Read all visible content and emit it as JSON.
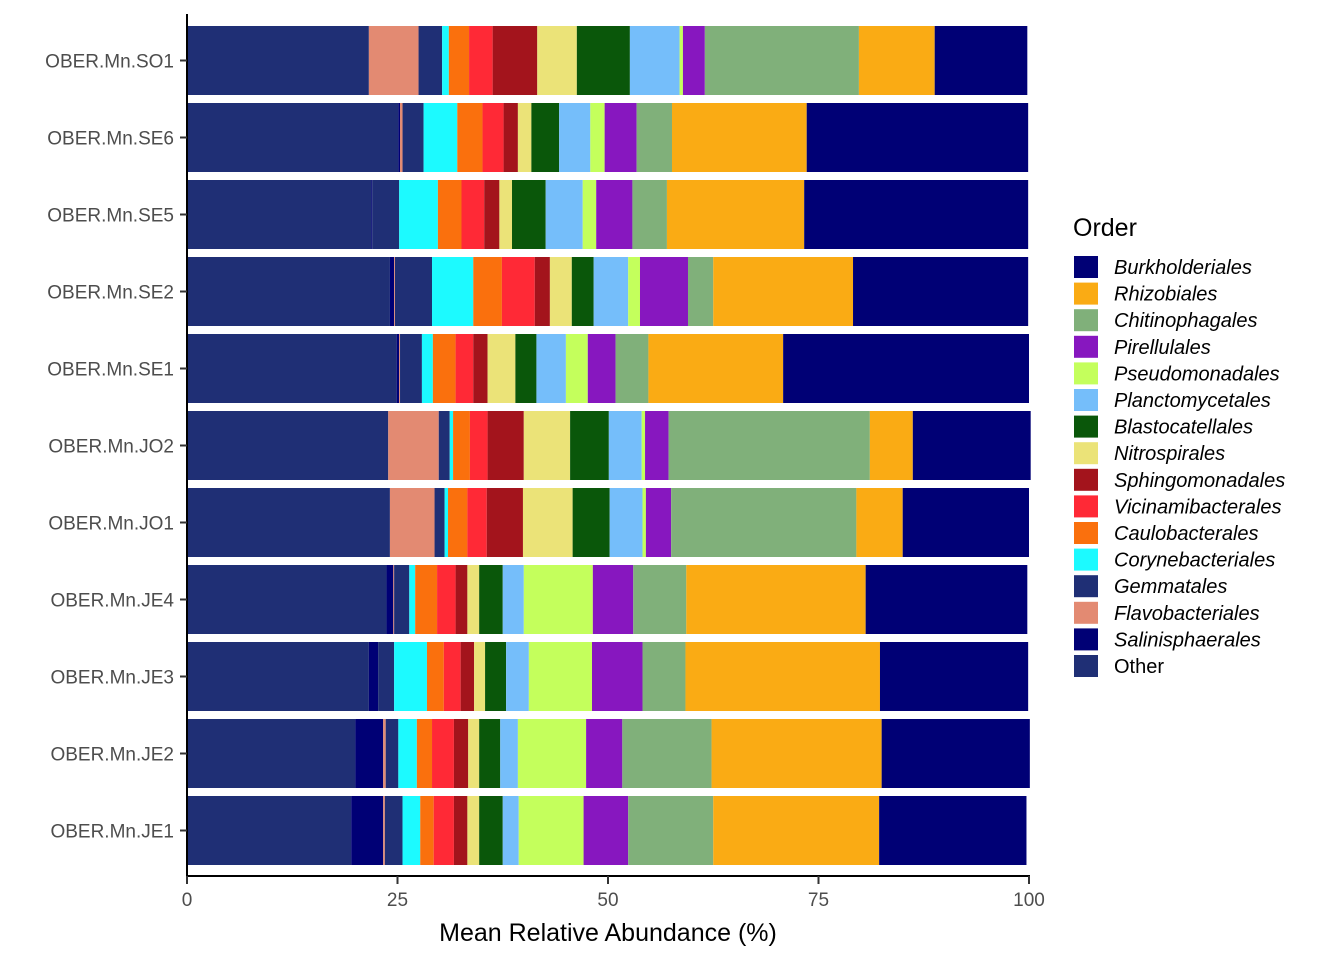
{
  "chart_data": {
    "type": "bar",
    "orientation": "horizontal",
    "stacked": true,
    "xlabel": "Mean Relative Abundance (%)",
    "ylabel": "",
    "xlim": [
      0,
      100
    ],
    "xticks": [
      0,
      25,
      50,
      75,
      100
    ],
    "categories": [
      "OBER.Mn.SO1",
      "OBER.Mn.SE6",
      "OBER.Mn.SE5",
      "OBER.Mn.SE2",
      "OBER.Mn.SE1",
      "OBER.Mn.JO2",
      "OBER.Mn.JO1",
      "OBER.Mn.JE4",
      "OBER.Mn.JE3",
      "OBER.Mn.JE2",
      "OBER.Mn.JE1"
    ],
    "legend_title": "Order",
    "legend_position": "right",
    "grid": false,
    "series": [
      {
        "name": "Other",
        "color": "#1F2F75",
        "italic": false,
        "values": [
          21.6,
          25.1,
          21.9,
          24.1,
          24.9,
          23.9,
          24.1,
          23.7,
          21.6,
          20.0,
          19.5
        ]
      },
      {
        "name": "Salinisphaerales",
        "color": "#000075",
        "italic": true,
        "values": [
          0.0,
          0.2,
          0.1,
          0.5,
          0.3,
          0.0,
          0.0,
          0.8,
          1.1,
          3.3,
          3.8
        ]
      },
      {
        "name": "Flavobacteriales",
        "color": "#E38A72",
        "italic": true,
        "values": [
          5.9,
          0.3,
          0.0,
          0.1,
          0.1,
          6.0,
          5.3,
          0.1,
          0.0,
          0.3,
          0.2
        ]
      },
      {
        "name": "Gemmatales",
        "color": "#1F2F75",
        "italic": true,
        "values": [
          2.8,
          2.5,
          3.2,
          4.4,
          2.6,
          1.3,
          1.2,
          1.8,
          1.9,
          1.5,
          2.1
        ]
      },
      {
        "name": "Corynebacteriales",
        "color": "#1CFAFF",
        "italic": true,
        "values": [
          0.8,
          4.0,
          4.6,
          4.9,
          1.3,
          0.4,
          0.4,
          0.7,
          3.9,
          2.2,
          2.1
        ]
      },
      {
        "name": "Caulobacterales",
        "color": "#FA700D",
        "italic": true,
        "values": [
          2.4,
          3.0,
          2.8,
          3.4,
          2.7,
          2.0,
          2.3,
          2.6,
          2.0,
          1.8,
          1.6
        ]
      },
      {
        "name": "Vicinamibacterales",
        "color": "#FF2936",
        "italic": true,
        "values": [
          2.8,
          2.5,
          2.7,
          3.9,
          2.1,
          2.1,
          2.3,
          2.2,
          2.0,
          2.6,
          2.4
        ]
      },
      {
        "name": "Sphingomonadales",
        "color": "#A3141C",
        "italic": true,
        "values": [
          5.3,
          1.7,
          1.8,
          1.8,
          1.7,
          4.3,
          4.3,
          1.4,
          1.6,
          1.7,
          1.6
        ]
      },
      {
        "name": "Nitrospirales",
        "color": "#EBE378",
        "italic": true,
        "values": [
          4.7,
          1.6,
          1.5,
          2.6,
          3.3,
          5.5,
          5.9,
          1.4,
          1.3,
          1.3,
          1.4
        ]
      },
      {
        "name": "Blastocatellales",
        "color": "#0A570A",
        "italic": true,
        "values": [
          6.3,
          3.3,
          4.0,
          2.6,
          2.5,
          4.6,
          4.4,
          2.8,
          2.5,
          2.5,
          2.8
        ]
      },
      {
        "name": "Planctomycetales",
        "color": "#75BEFA",
        "italic": true,
        "values": [
          5.9,
          3.7,
          4.4,
          4.1,
          3.5,
          3.9,
          3.9,
          2.5,
          2.7,
          2.1,
          1.9
        ]
      },
      {
        "name": "Pseudomonadales",
        "color": "#C4FF5C",
        "italic": true,
        "values": [
          0.4,
          1.7,
          1.6,
          1.4,
          2.6,
          0.4,
          0.4,
          8.2,
          7.5,
          8.1,
          7.7
        ]
      },
      {
        "name": "Pirellulales",
        "color": "#8717BF",
        "italic": true,
        "values": [
          2.6,
          3.8,
          4.3,
          5.7,
          3.3,
          2.8,
          3.0,
          4.8,
          6.0,
          4.3,
          5.3
        ]
      },
      {
        "name": "Chitinophagales",
        "color": "#80B07A",
        "italic": true,
        "values": [
          18.3,
          4.2,
          4.1,
          3.0,
          3.9,
          23.9,
          22.0,
          6.3,
          5.1,
          10.6,
          10.1
        ]
      },
      {
        "name": "Rhizobiales",
        "color": "#FAAB14",
        "italic": true,
        "values": [
          9.0,
          16.0,
          16.3,
          16.6,
          16.0,
          5.1,
          5.5,
          21.3,
          23.1,
          20.2,
          19.7
        ]
      },
      {
        "name": "Burkholderiales",
        "color": "#000075",
        "italic": true,
        "values": [
          11.0,
          26.3,
          26.6,
          20.8,
          29.2,
          14.0,
          15.0,
          19.2,
          17.6,
          17.6,
          17.5
        ]
      }
    ],
    "legend_order": [
      "Burkholderiales",
      "Rhizobiales",
      "Chitinophagales",
      "Pirellulales",
      "Pseudomonadales",
      "Planctomycetales",
      "Blastocatellales",
      "Nitrospirales",
      "Sphingomonadales",
      "Vicinamibacterales",
      "Caulobacterales",
      "Corynebacteriales",
      "Gemmatales",
      "Flavobacteriales",
      "Salinisphaerales",
      "Other"
    ]
  }
}
